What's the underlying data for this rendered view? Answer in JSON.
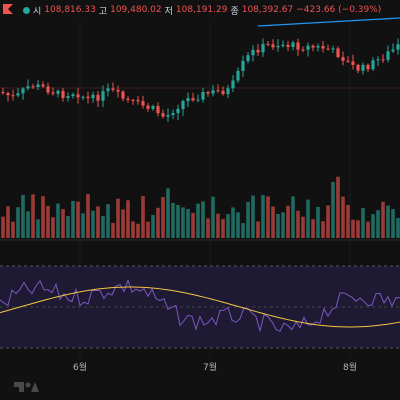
{
  "header": {
    "open_label": "시",
    "open_value": "108,816.33",
    "high_label": "고",
    "high_value": "109,480.02",
    "low_label": "저",
    "low_value": "108,191.29",
    "close_label": "종",
    "close_value": "108,392.67",
    "change": "−423.66 (−0.39%)"
  },
  "x_axis": {
    "labels": [
      "6월",
      "7월",
      "8월"
    ]
  },
  "colors": {
    "up": "#26a69a",
    "down": "#ef5350",
    "background": "#111111",
    "trendline": "#2196f3",
    "rsi_line": "#7e57c2",
    "rsi_ma": "#f5c542",
    "rsi_band": "#1e1a33"
  },
  "icons": {
    "logo": "tradingview-logo-icon",
    "dot": "symbol-status-dot-icon"
  }
}
